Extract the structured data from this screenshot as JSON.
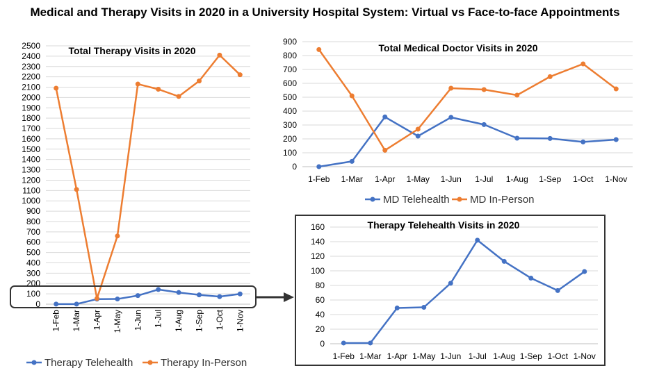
{
  "title": "Medical and Therapy Visits in 2020 in a University Hospital System: Virtual vs Face-to-face Appointments",
  "colors": {
    "telehealth": "#4472C4",
    "in_person": "#ED7D31",
    "callout": "#333333"
  },
  "chart_data": [
    {
      "id": "therapy-total",
      "type": "line",
      "title": "Total Therapy Visits in 2020",
      "categories": [
        "1-Feb",
        "1-Mar",
        "1-Apr",
        "1-May",
        "1-Jun",
        "1-Jul",
        "1-Aug",
        "1-Sep",
        "1-Oct",
        "1-Nov"
      ],
      "ylim": [
        0,
        2500
      ],
      "ytick_step": 100,
      "grid": true,
      "legend": "bottom",
      "series": [
        {
          "name": "Therapy Telehealth",
          "color": "#4472C4",
          "values": [
            1,
            1,
            49,
            50,
            83,
            142,
            113,
            90,
            73,
            99
          ]
        },
        {
          "name": "Therapy In-Person",
          "color": "#ED7D31",
          "values": [
            2090,
            1110,
            55,
            660,
            2130,
            2080,
            2010,
            2160,
            2410,
            2220
          ]
        }
      ]
    },
    {
      "id": "md-total",
      "type": "line",
      "title": "Total Medical Doctor Visits in 2020",
      "categories": [
        "1-Feb",
        "1-Mar",
        "1-Apr",
        "1-May",
        "1-Jun",
        "1-Jul",
        "1-Aug",
        "1-Sep",
        "1-Oct",
        "1-Nov"
      ],
      "ylim": [
        0,
        900
      ],
      "ytick_step": 100,
      "grid": true,
      "legend": "bottom",
      "series": [
        {
          "name": "MD Telehealth",
          "color": "#4472C4",
          "values": [
            0,
            38,
            358,
            220,
            355,
            303,
            205,
            203,
            178,
            195
          ]
        },
        {
          "name": "MD In-Person",
          "color": "#ED7D31",
          "values": [
            843,
            510,
            118,
            270,
            565,
            555,
            515,
            648,
            740,
            560
          ]
        }
      ]
    },
    {
      "id": "therapy-telehealth",
      "type": "line",
      "title": "Therapy Telehealth Visits in 2020",
      "categories": [
        "1-Feb",
        "1-Mar",
        "1-Apr",
        "1-May",
        "1-Jun",
        "1-Jul",
        "1-Aug",
        "1-Sep",
        "1-Oct",
        "1-Nov"
      ],
      "ylim": [
        0,
        160
      ],
      "ytick_step": 20,
      "grid": true,
      "legend": "none",
      "series": [
        {
          "name": "",
          "color": "#4472C4",
          "values": [
            1,
            1,
            49,
            50,
            83,
            142,
            113,
            90,
            73,
            99
          ]
        }
      ]
    }
  ]
}
